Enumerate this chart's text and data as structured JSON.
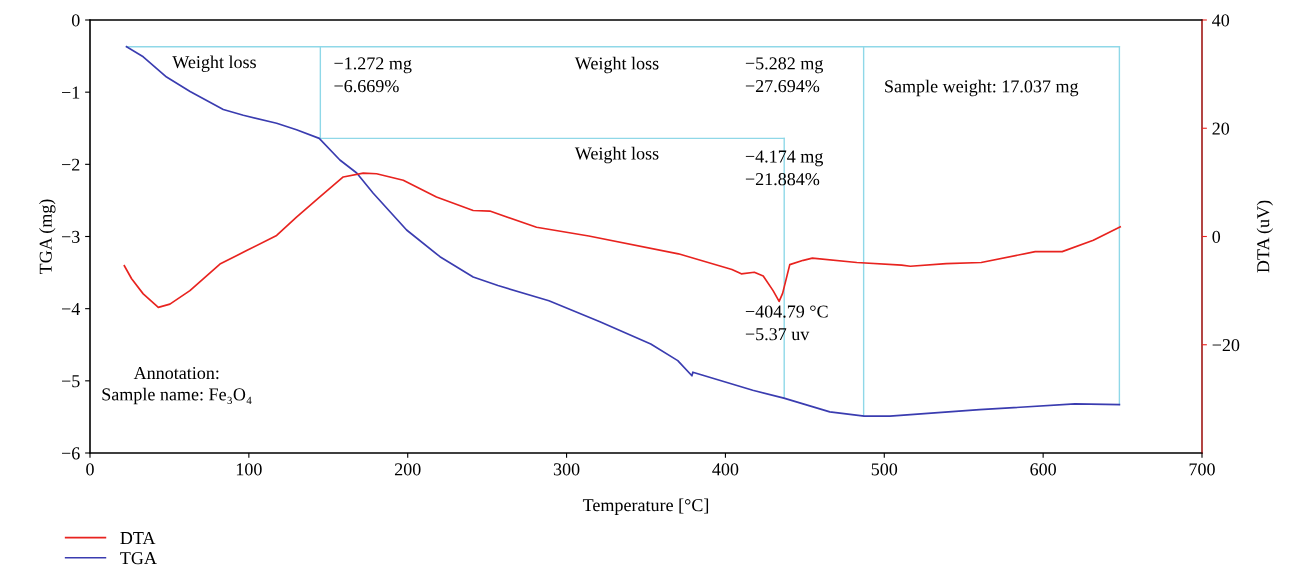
{
  "chart_data": {
    "type": "line",
    "xlabel": "Temperature [°C]",
    "ylabel": "TGA (mg)",
    "y2label": "DTA (uV)",
    "xlim": [
      0,
      700
    ],
    "xticks": [
      0,
      100,
      200,
      300,
      400,
      500,
      600,
      700
    ],
    "ylim": [
      -6,
      0
    ],
    "yticks": [
      0,
      -1,
      -2,
      -3,
      -4,
      -5,
      -6
    ],
    "y2lim": [
      -40,
      40
    ],
    "y2ticks": [
      40,
      20,
      0,
      -20
    ],
    "grid": false,
    "legend": "bottom left",
    "marker": "none",
    "line_style": "solid",
    "series": [
      {
        "name": "DTA",
        "color": "#e8231f",
        "axis": "y2",
        "x": [
          21.6,
          26.2,
          33.5,
          43,
          50.3,
          62.9,
          81.8,
          98.6,
          117.5,
          130,
          144.7,
          159.4,
          172,
          180.4,
          197.2,
          218.1,
          241.2,
          251.7,
          281.1,
          314,
          370.4,
          404.1,
          410,
          418.2,
          423.8,
          430,
          433.8,
          436,
          440.5,
          449,
          454.7,
          482.7,
          510.9,
          516.4,
          539,
          561,
          595,
          612,
          631.6,
          648.5
        ],
        "values": [
          -5.4,
          -7.8,
          -10.6,
          -13.1,
          -12.5,
          -10.0,
          -5.1,
          -2.6,
          0.2,
          3.6,
          7.3,
          11.0,
          11.7,
          11.6,
          10.4,
          7.3,
          4.8,
          4.7,
          1.7,
          0.1,
          -3.2,
          -6.1,
          -6.9,
          -6.6,
          -7.3,
          -10.0,
          -12.0,
          -10.5,
          -5.2,
          -4.4,
          -4.0,
          -4.8,
          -5.3,
          -5.5,
          -5.0,
          -4.8,
          -2.8,
          -2.8,
          -0.7,
          1.8
        ]
      },
      {
        "name": "TGA",
        "color": "#3a3cb0",
        "x": [
          23,
          33.5,
          48.2,
          63,
          83.9,
          96.5,
          117.5,
          130,
          144.3,
          157.3,
          167.9,
          178.3,
          199.3,
          220.3,
          241.2,
          256.8,
          288.9,
          321,
          353,
          370,
          378.9,
          379.5,
          417.2,
          436.8,
          465.7,
          487.4,
          503.5,
          560,
          620,
          648
        ],
        "values": [
          -0.37,
          -0.51,
          -0.79,
          -0.99,
          -1.24,
          -1.32,
          -1.43,
          -1.52,
          -1.64,
          -1.94,
          -2.12,
          -2.4,
          -2.91,
          -3.28,
          -3.56,
          -3.68,
          -3.89,
          -4.18,
          -4.49,
          -4.72,
          -4.93,
          -4.88,
          -5.13,
          -5.24,
          -5.43,
          -5.49,
          -5.49,
          -5.4,
          -5.32,
          -5.33
        ]
      }
    ],
    "ref_lines": [
      {
        "axis": "x",
        "value": 145,
        "color": "#8fd8e8",
        "line_style": "solid"
      },
      {
        "axis": "x",
        "value": 437,
        "color": "#8fd8e8",
        "line_style": "solid"
      },
      {
        "axis": "x",
        "value": 487,
        "color": "#8fd8e8",
        "line_style": "solid"
      },
      {
        "axis": "x",
        "value": 648,
        "color": "#8fd8e8",
        "line_style": "solid"
      },
      {
        "axis": "y",
        "value": -0.37,
        "color": "#8fd8e8",
        "line_style": "solid"
      },
      {
        "axis": "y",
        "value": -1.64,
        "color": "#8fd8e8",
        "line_style": "solid"
      }
    ],
    "annotations": [
      "Weight loss",
      "−1.272 mg\n−6.669%",
      "Weight loss",
      "−5.282 mg\n−27.694%",
      "Sample weight: 17.037 mg",
      "Weight loss",
      "−4.174 mg\n−21.884%",
      "−404.79 °C\n−5.37 uv",
      "Annotation:\nSample name: Fe₃O₄"
    ]
  }
}
